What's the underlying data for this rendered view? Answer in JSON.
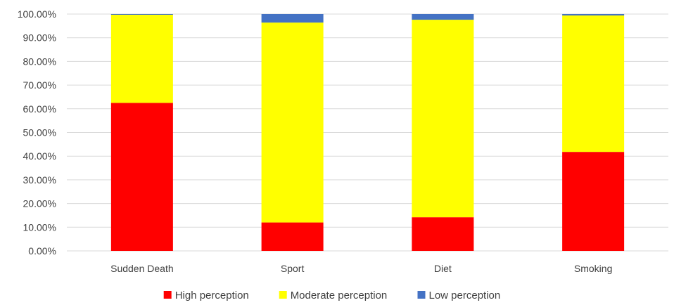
{
  "chart_data": {
    "type": "bar",
    "stacked": true,
    "categories": [
      "Sudden Death",
      "Sport",
      "Diet",
      "Smoking"
    ],
    "series": [
      {
        "name": "High perception",
        "color": "#ff0000",
        "values": [
          62.5,
          12.0,
          14.2,
          41.8
        ]
      },
      {
        "name": "Moderate perception",
        "color": "#ffff00",
        "values": [
          37.2,
          84.4,
          83.4,
          57.6
        ]
      },
      {
        "name": "Low perception",
        "color": "#4472c4",
        "values": [
          0.3,
          3.6,
          2.4,
          0.6
        ]
      }
    ],
    "ylim": [
      0,
      100
    ],
    "yticks": [
      "0.00%",
      "10.00%",
      "20.00%",
      "30.00%",
      "40.00%",
      "50.00%",
      "60.00%",
      "70.00%",
      "80.00%",
      "90.00%",
      "100.00%"
    ],
    "grid": true,
    "legend_position": "bottom",
    "title": "",
    "xlabel": "",
    "ylabel": ""
  }
}
